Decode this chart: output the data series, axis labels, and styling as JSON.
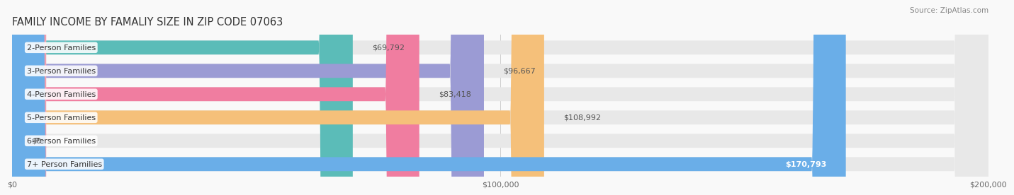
{
  "title": "FAMILY INCOME BY FAMALIY SIZE IN ZIP CODE 07063",
  "source": "Source: ZipAtlas.com",
  "categories": [
    "2-Person Families",
    "3-Person Families",
    "4-Person Families",
    "5-Person Families",
    "6-Person Families",
    "7+ Person Families"
  ],
  "values": [
    69792,
    96667,
    83418,
    108992,
    0,
    170793
  ],
  "bar_colors": [
    "#5bbcb8",
    "#9b9bd4",
    "#f07da0",
    "#f5c07a",
    "#f0a0b0",
    "#6aaee8"
  ],
  "bar_bg_color": "#e8e8e8",
  "value_labels": [
    "$69,792",
    "$96,667",
    "$83,418",
    "$108,992",
    "$0",
    "$170,793"
  ],
  "value_label_inside": [
    false,
    false,
    false,
    false,
    false,
    true
  ],
  "x_max": 200000,
  "x_ticks": [
    0,
    100000,
    200000
  ],
  "x_tick_labels": [
    "$0",
    "$100,000",
    "$200,000"
  ],
  "background_color": "#f9f9f9",
  "title_fontsize": 10.5,
  "label_fontsize": 8.0,
  "value_fontsize": 8.0,
  "source_fontsize": 7.5
}
